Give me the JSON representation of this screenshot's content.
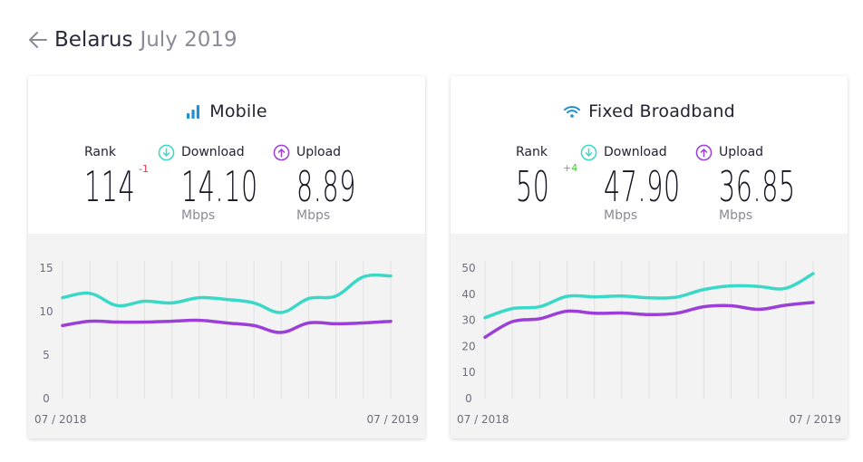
{
  "header": {
    "country": "Belarus",
    "date": "July 2019"
  },
  "colors": {
    "download": "#3ad8c6",
    "upload": "#9b3fd8",
    "mobile_icon": "#1f8fd6",
    "rank_negative": "#e0364e",
    "rank_positive": "#4bc83a"
  },
  "mobile": {
    "title": "Mobile",
    "icon": "signal-bars-icon",
    "rank_label": "Rank",
    "rank": "114",
    "rank_change": "-1",
    "download_label": "Download",
    "download": "14.10",
    "download_unit": "Mbps",
    "upload_label": "Upload",
    "upload": "8.89",
    "upload_unit": "Mbps"
  },
  "fixed": {
    "title": "Fixed Broadband",
    "icon": "wifi-icon",
    "rank_label": "Rank",
    "rank": "50",
    "rank_change": "+4",
    "download_label": "Download",
    "download": "47.90",
    "download_unit": "Mbps",
    "upload_label": "Upload",
    "upload": "36.85",
    "upload_unit": "Mbps"
  },
  "chart_data": [
    {
      "type": "line",
      "x": [
        "07 / 2018",
        "08 / 2018",
        "09 / 2018",
        "10 / 2018",
        "11 / 2018",
        "12 / 2018",
        "01 / 2019",
        "02 / 2019",
        "03 / 2019",
        "04 / 2019",
        "05 / 2019",
        "06 / 2019",
        "07 / 2019"
      ],
      "x_tick_labels": [
        "07 / 2018",
        "07 / 2019"
      ],
      "y_ticks": [
        "0",
        "5",
        "10",
        "15"
      ],
      "ylim": [
        0,
        15
      ],
      "grid": "vertical",
      "series": [
        {
          "key": "download",
          "values": [
            11.6,
            12.1,
            10.7,
            11.2,
            11.0,
            11.6,
            11.4,
            11.0,
            9.9,
            11.5,
            11.8,
            14.0,
            14.1
          ]
        },
        {
          "key": "upload",
          "values": [
            8.4,
            8.9,
            8.8,
            8.8,
            8.9,
            9.0,
            8.7,
            8.4,
            7.6,
            8.7,
            8.6,
            8.7,
            8.89
          ]
        }
      ]
    },
    {
      "type": "line",
      "x": [
        "07 / 2018",
        "08 / 2018",
        "09 / 2018",
        "10 / 2018",
        "11 / 2018",
        "12 / 2018",
        "01 / 2019",
        "02 / 2019",
        "03 / 2019",
        "04 / 2019",
        "05 / 2019",
        "06 / 2019",
        "07 / 2019"
      ],
      "x_tick_labels": [
        "07 / 2018",
        "07 / 2019"
      ],
      "y_ticks": [
        "0",
        "10",
        "20",
        "30",
        "40",
        "50"
      ],
      "ylim": [
        0,
        50
      ],
      "grid": "vertical",
      "series": [
        {
          "key": "download",
          "values": [
            31.0,
            34.5,
            35.2,
            39.2,
            39.0,
            39.3,
            38.6,
            38.9,
            41.8,
            43.2,
            43.0,
            42.3,
            47.9
          ]
        },
        {
          "key": "upload",
          "values": [
            23.5,
            29.5,
            30.6,
            33.5,
            32.7,
            32.8,
            32.2,
            32.7,
            35.2,
            35.6,
            34.2,
            35.8,
            36.85
          ]
        }
      ]
    }
  ]
}
